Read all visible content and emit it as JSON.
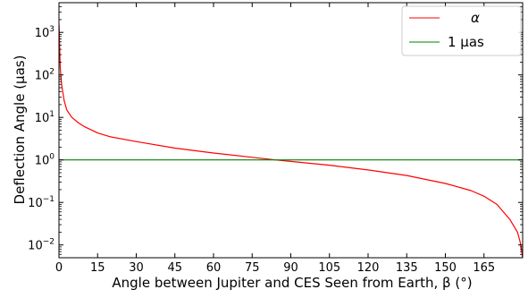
{
  "chart_data": {
    "type": "line",
    "title": "",
    "xlabel": "Angle between Jupiter and CES Seen from Earth, β (°)",
    "ylabel": "Deflection Angle (μas)",
    "xlim": [
      0,
      180
    ],
    "ylim": [
      0.005,
      5000
    ],
    "yscale": "log",
    "grid": false,
    "legend_position": "top-right",
    "x_ticks": [
      0,
      15,
      30,
      45,
      60,
      75,
      90,
      105,
      120,
      135,
      150,
      165
    ],
    "y_ticks": [
      {
        "base": "10",
        "exp": "3",
        "value": 1000
      },
      {
        "base": "10",
        "exp": "2",
        "value": 100
      },
      {
        "base": "10",
        "exp": "1",
        "value": 10
      },
      {
        "base": "10",
        "exp": "0",
        "value": 1
      },
      {
        "base": "10",
        "exp": "−1",
        "value": 0.1
      },
      {
        "base": "10",
        "exp": "−2",
        "value": 0.01
      }
    ],
    "series": [
      {
        "name": "α",
        "color": "#ff0000",
        "x": [
          0.05,
          0.1,
          0.2,
          0.5,
          1,
          2,
          3,
          5,
          7.5,
          10,
          15,
          20,
          30,
          45,
          60,
          75,
          84,
          90,
          105,
          120,
          135,
          150,
          160,
          165,
          170,
          175,
          178,
          179,
          179.5,
          179.8,
          179.95
        ],
        "y": [
          1500,
          1000,
          600,
          150,
          60,
          25,
          15,
          10,
          7.5,
          6,
          4.3,
          3.5,
          2.7,
          1.9,
          1.45,
          1.15,
          1.0,
          0.92,
          0.75,
          0.58,
          0.43,
          0.28,
          0.19,
          0.14,
          0.09,
          0.04,
          0.02,
          0.012,
          0.008,
          0.006,
          0.005
        ]
      },
      {
        "name": "1 μas",
        "color": "#008000",
        "x": [
          0,
          180
        ],
        "y": [
          1,
          1
        ]
      }
    ]
  }
}
